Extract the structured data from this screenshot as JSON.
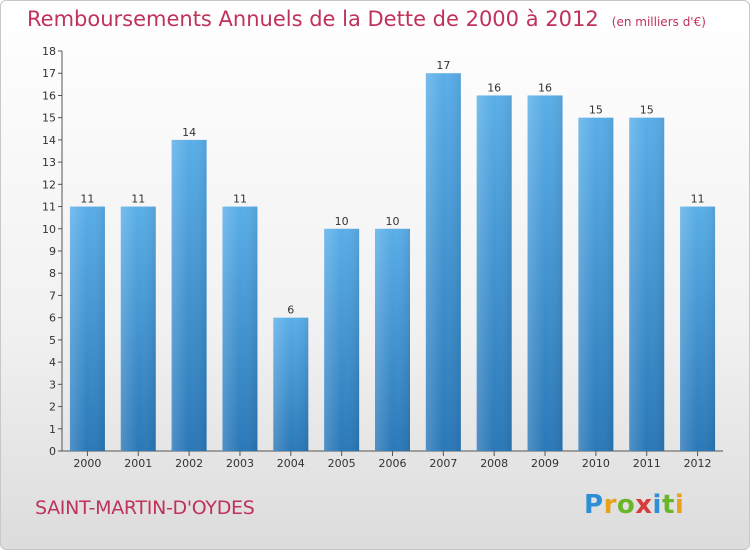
{
  "chart_data": {
    "type": "bar",
    "title": "Remboursements Annuels de la Dette de 2000 à 2012",
    "unit_label": "(en milliers d'€)",
    "categories": [
      "2000",
      "2001",
      "2002",
      "2003",
      "2004",
      "2005",
      "2006",
      "2007",
      "2008",
      "2009",
      "2010",
      "2011",
      "2012"
    ],
    "values": [
      11,
      11,
      14,
      11,
      6,
      10,
      10,
      17,
      16,
      16,
      15,
      15,
      11
    ],
    "ylim": [
      0,
      18
    ],
    "yticks": [
      0,
      1,
      2,
      3,
      4,
      5,
      6,
      7,
      8,
      9,
      10,
      11,
      12,
      13,
      14,
      15,
      16,
      17,
      18
    ],
    "xlabel": "",
    "ylabel": "",
    "grid": false,
    "bar_color_top": "#5aaee8",
    "bar_color_bottom": "#2a78b8",
    "title_color": "#c0325a"
  },
  "commune": "SAINT-MARTIN-D'OYDES",
  "logo": {
    "text": "Proxiti",
    "letter_colors": [
      "#2e8fd6",
      "#e8a21a",
      "#6ab52b",
      "#d63c3c",
      "#2e8fd6",
      "#6ab52b",
      "#e8a21a"
    ]
  }
}
